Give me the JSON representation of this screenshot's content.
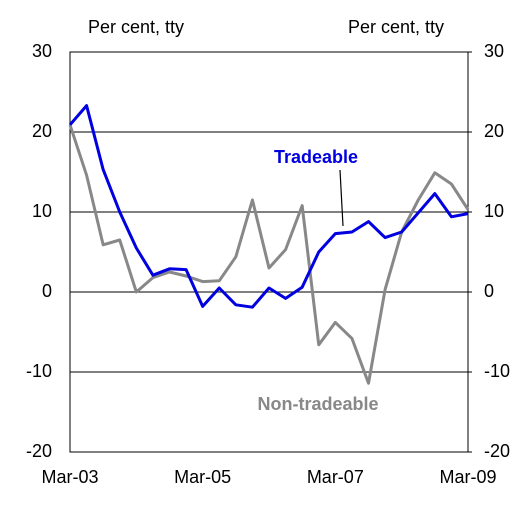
{
  "chart_data": {
    "type": "line",
    "y_label": "Per cent, tty",
    "y2_label": "Per cent, tty",
    "categories": [
      "Mar-03",
      null,
      null,
      null,
      null,
      null,
      null,
      null,
      "Mar-05",
      null,
      null,
      null,
      null,
      null,
      null,
      null,
      "Mar-07",
      null,
      null,
      null,
      null,
      null,
      null,
      null,
      "Mar-09"
    ],
    "series": [
      {
        "name": "Tradeable",
        "color": "#0000e0",
        "values": [
          20.9,
          23.3,
          15.3,
          10,
          5.5,
          2.1,
          2.9,
          2.8,
          -1.8,
          0.5,
          -1.6,
          -1.9,
          0.5,
          -0.8,
          0.6,
          5,
          7.3,
          7.5,
          8.8,
          6.8,
          7.5,
          9.9,
          12.3,
          9.4,
          9.8
        ]
      },
      {
        "name": "Non-tradeable",
        "color": "#888888",
        "values": [
          20.9,
          14.6,
          5.9,
          6.5,
          0,
          1.8,
          2.5,
          2,
          1.3,
          1.4,
          4.4,
          11.5,
          3,
          5.3,
          10.8,
          -6.6,
          -3.8,
          -5.8,
          -11.4,
          0.3,
          7.5,
          11.5,
          14.9,
          13.5,
          10.3
        ]
      }
    ],
    "ylim": [
      -20,
      30
    ],
    "yticks": [
      -20,
      -10,
      0,
      10,
      20,
      30
    ],
    "y2lim": [
      -20,
      30
    ],
    "y2ticks": [
      -20,
      -10,
      0,
      10,
      20,
      30
    ],
    "grid": true
  }
}
